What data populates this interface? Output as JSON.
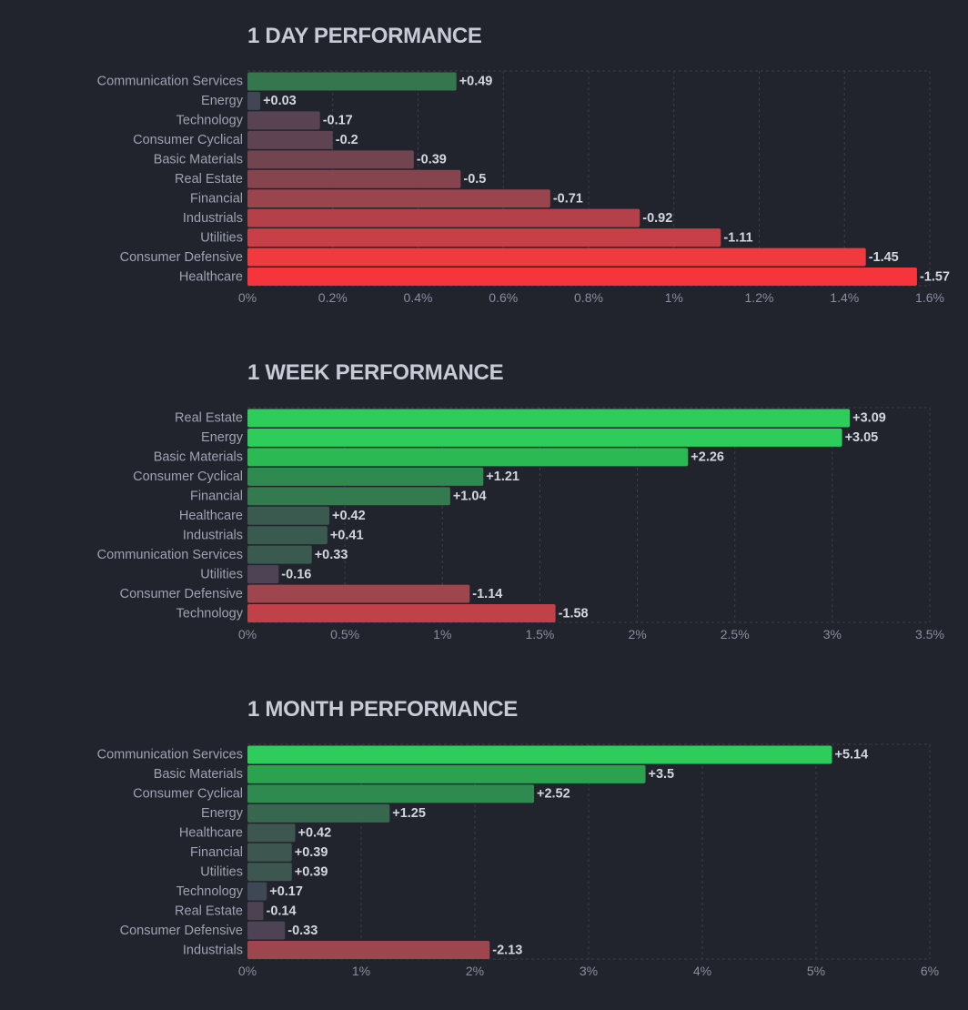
{
  "chart_data": [
    {
      "type": "bar",
      "orientation": "horizontal",
      "title": "1 DAY PERFORMANCE",
      "categories": [
        "Communication Services",
        "Energy",
        "Technology",
        "Consumer Cyclical",
        "Basic Materials",
        "Real Estate",
        "Financial",
        "Industrials",
        "Utilities",
        "Consumer Defensive",
        "Healthcare"
      ],
      "values": [
        0.49,
        0.03,
        -0.17,
        -0.2,
        -0.39,
        -0.5,
        -0.71,
        -0.92,
        -1.11,
        -1.45,
        -1.57
      ],
      "value_labels": [
        "+0.49",
        "+0.03",
        "-0.17",
        "-0.2",
        "-0.39",
        "-0.5",
        "-0.71",
        "-0.92",
        "-1.11",
        "-1.45",
        "-1.57"
      ],
      "colors": [
        "#35764f",
        "#414554",
        "#584352",
        "#5e4352",
        "#72444f",
        "#86444f",
        "#9a444e",
        "#b4404a",
        "#c93f47",
        "#ef3a3f",
        "#f6343b"
      ],
      "xlim": [
        0,
        1.6
      ],
      "xticks": [
        "0%",
        "0.2%",
        "0.4%",
        "0.6%",
        "0.8%",
        "1%",
        "1.2%",
        "1.4%",
        "1.6%"
      ],
      "xtick_values": [
        0,
        0.2,
        0.4,
        0.6,
        0.8,
        1,
        1.2,
        1.4,
        1.6
      ],
      "xlabel": "",
      "ylabel": "",
      "grid": true,
      "scale": "absolute % change"
    },
    {
      "type": "bar",
      "orientation": "horizontal",
      "title": "1 WEEK PERFORMANCE",
      "categories": [
        "Real Estate",
        "Energy",
        "Basic Materials",
        "Consumer Cyclical",
        "Financial",
        "Healthcare",
        "Industrials",
        "Communication Services",
        "Utilities",
        "Consumer Defensive",
        "Technology"
      ],
      "values": [
        3.09,
        3.05,
        2.26,
        1.21,
        1.04,
        0.42,
        0.41,
        0.33,
        -0.16,
        -1.14,
        -1.58
      ],
      "value_labels": [
        "+3.09",
        "+3.05",
        "+2.26",
        "+1.21",
        "+1.04",
        "+0.42",
        "+0.41",
        "+0.33",
        "-0.16",
        "-1.14",
        "-1.58"
      ],
      "colors": [
        "#2ecc5a",
        "#2ecc5a",
        "#2bb953",
        "#2f8a4f",
        "#337a4f",
        "#3b5a4f",
        "#3b5a4f",
        "#3b5a4f",
        "#4e4354",
        "#9e464e",
        "#c04248"
      ],
      "xlim": [
        0,
        3.5
      ],
      "xticks": [
        "0%",
        "0.5%",
        "1%",
        "1.5%",
        "2%",
        "2.5%",
        "3%",
        "3.5%"
      ],
      "xtick_values": [
        0,
        0.5,
        1,
        1.5,
        2,
        2.5,
        3,
        3.5
      ],
      "xlabel": "",
      "ylabel": "",
      "grid": true,
      "scale": "absolute % change"
    },
    {
      "type": "bar",
      "orientation": "horizontal",
      "title": "1 MONTH PERFORMANCE",
      "categories": [
        "Communication Services",
        "Basic Materials",
        "Consumer Cyclical",
        "Energy",
        "Healthcare",
        "Financial",
        "Utilities",
        "Technology",
        "Real Estate",
        "Consumer Defensive",
        "Industrials"
      ],
      "values": [
        5.14,
        3.5,
        2.52,
        1.25,
        0.42,
        0.39,
        0.39,
        0.17,
        -0.14,
        -0.33,
        -2.13
      ],
      "value_labels": [
        "+5.14",
        "+3.5",
        "+2.52",
        "+1.25",
        "+0.42",
        "+0.39",
        "+0.39",
        "+0.17",
        "-0.14",
        "-0.33",
        "-2.13"
      ],
      "colors": [
        "#2ecc5a",
        "#2ca24f",
        "#2f8a4f",
        "#37684f",
        "#3d5750",
        "#3d5750",
        "#3d5750",
        "#3e4854",
        "#4c4252",
        "#4e4354",
        "#9e464e"
      ],
      "xlim": [
        0,
        6
      ],
      "xticks": [
        "0%",
        "1%",
        "2%",
        "3%",
        "4%",
        "5%",
        "6%"
      ],
      "xtick_values": [
        0,
        1,
        2,
        3,
        4,
        5,
        6
      ],
      "xlabel": "",
      "ylabel": "",
      "grid": true,
      "scale": "absolute % change"
    }
  ]
}
